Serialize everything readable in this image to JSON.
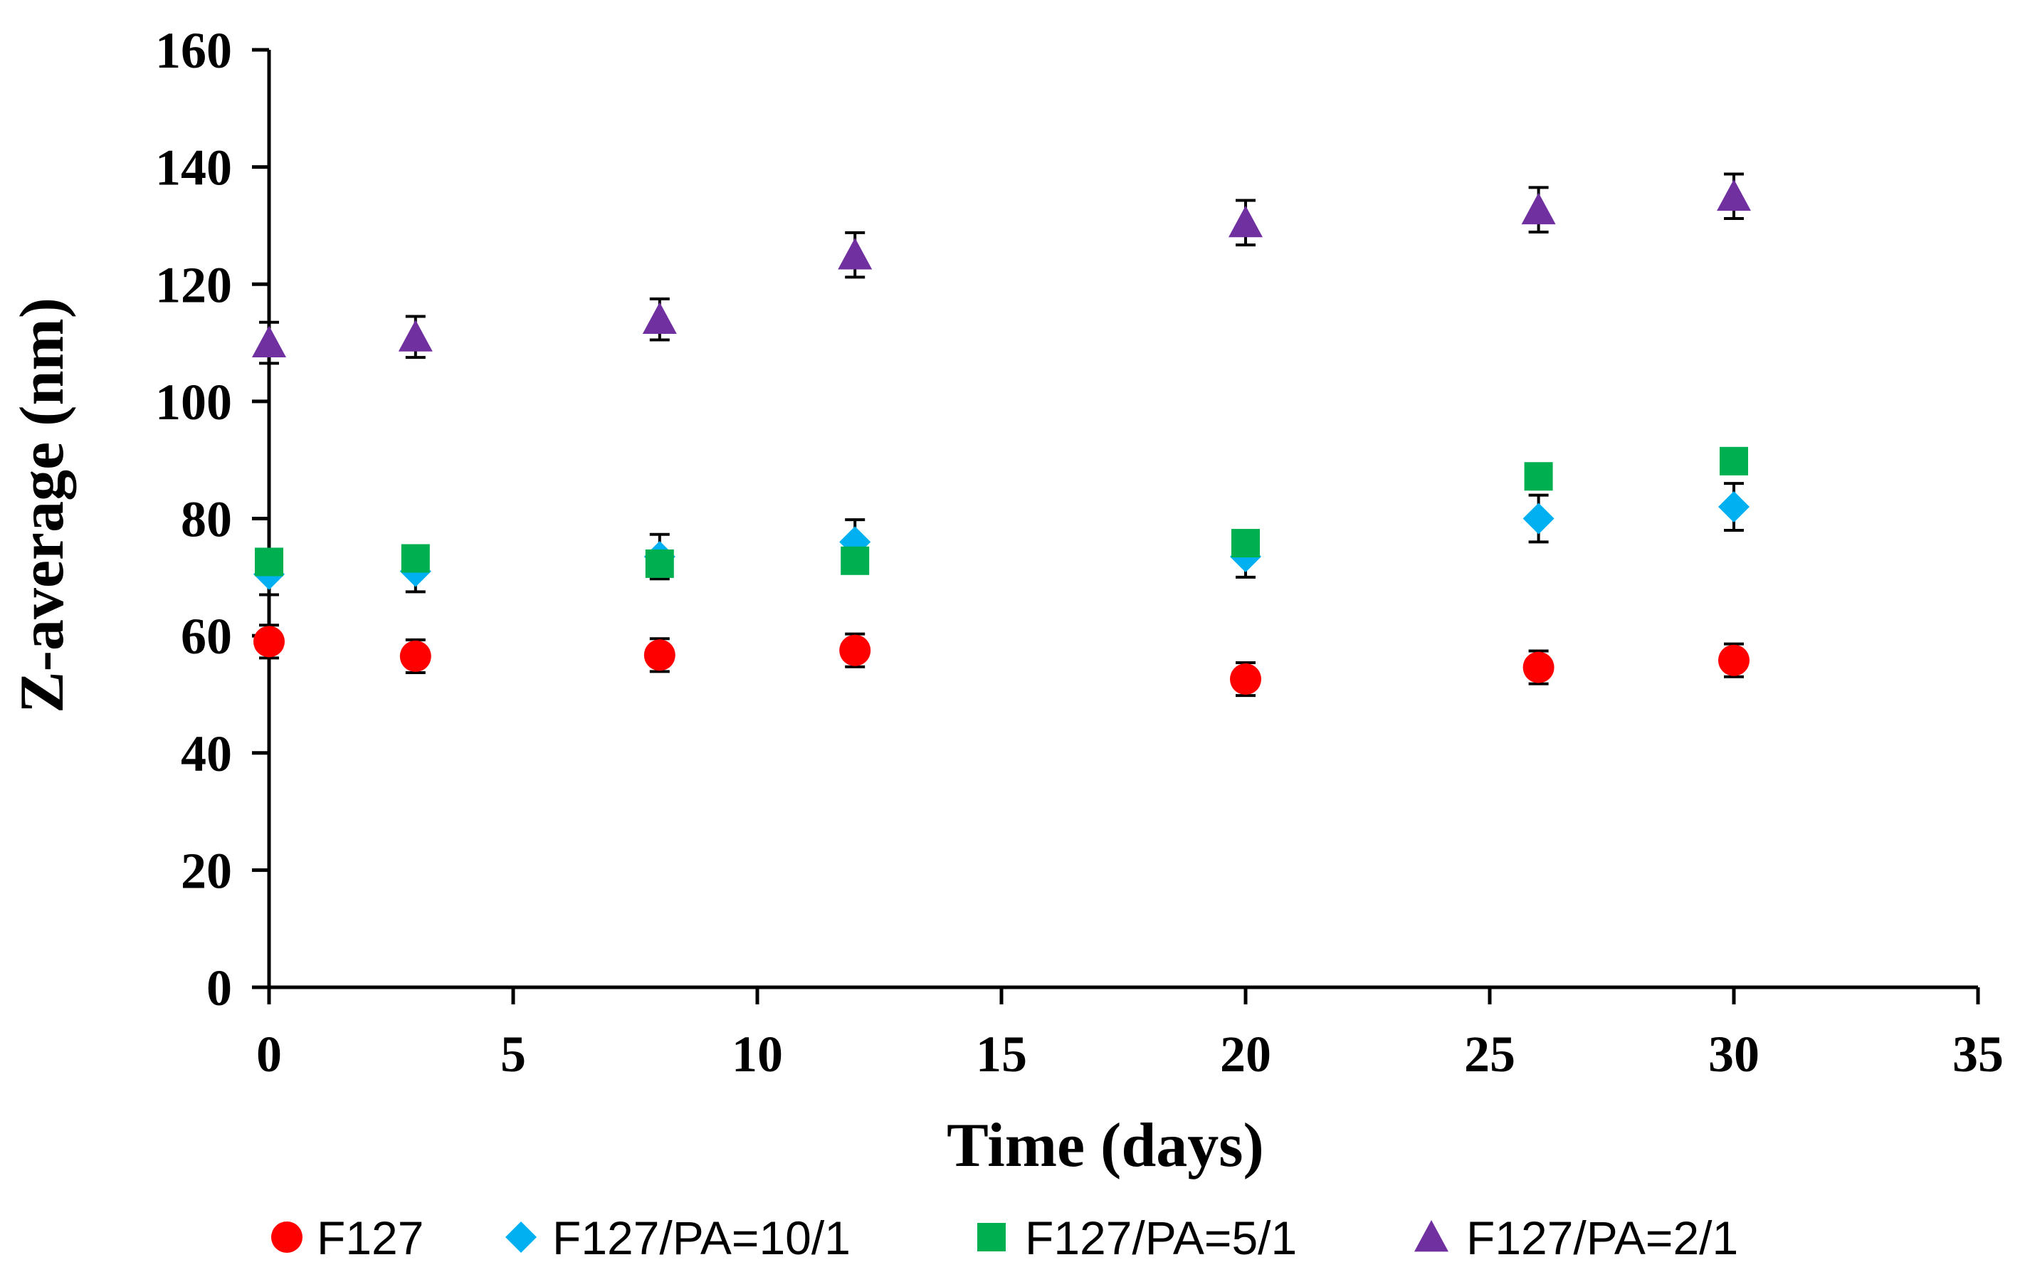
{
  "chart_data": {
    "type": "scatter",
    "title": "",
    "xlabel": "Time (days)",
    "ylabel": "Z-average (nm)",
    "xlim": [
      0,
      35
    ],
    "ylim": [
      0,
      160
    ],
    "x_ticks": [
      0,
      5,
      10,
      15,
      20,
      25,
      30,
      35
    ],
    "y_ticks": [
      0,
      20,
      40,
      60,
      80,
      100,
      120,
      140,
      160
    ],
    "grid": false,
    "legend_position": "bottom",
    "series": [
      {
        "name": "F127",
        "marker": "circle",
        "color": "#FF0000",
        "x": [
          0,
          3,
          8,
          12,
          20,
          26,
          30
        ],
        "y": [
          59,
          56.5,
          56.7,
          57.5,
          52.6,
          54.6,
          55.8
        ],
        "err": [
          2.8,
          2.8,
          2.8,
          2.8,
          2.8,
          2.8,
          2.8
        ]
      },
      {
        "name": "F127/PA=10/1",
        "marker": "diamond",
        "color": "#00B0F0",
        "x": [
          0,
          3,
          8,
          12,
          20,
          26,
          30
        ],
        "y": [
          70.5,
          71,
          73.5,
          76,
          73.5,
          80,
          82
        ],
        "err": [
          3.5,
          3.5,
          3.8,
          3.8,
          3.5,
          4,
          4
        ]
      },
      {
        "name": "F127/PA=5/1",
        "marker": "square",
        "color": "#00B050",
        "x": [
          0,
          3,
          8,
          12,
          20,
          26,
          30
        ],
        "y": [
          72.6,
          73.2,
          72.3,
          72.8,
          75.8,
          87.2,
          89.8
        ],
        "err": [
          1.5,
          1.5,
          1.5,
          1.5,
          1.5,
          1.5,
          1.5
        ]
      },
      {
        "name": "F127/PA=2/1",
        "marker": "triangle",
        "color": "#7030A0",
        "x": [
          0,
          3,
          8,
          12,
          20,
          26,
          30
        ],
        "y": [
          110,
          111,
          114,
          125,
          130.5,
          132.7,
          135
        ],
        "err": [
          3.5,
          3.5,
          3.5,
          3.8,
          3.8,
          3.8,
          3.8
        ]
      }
    ]
  }
}
